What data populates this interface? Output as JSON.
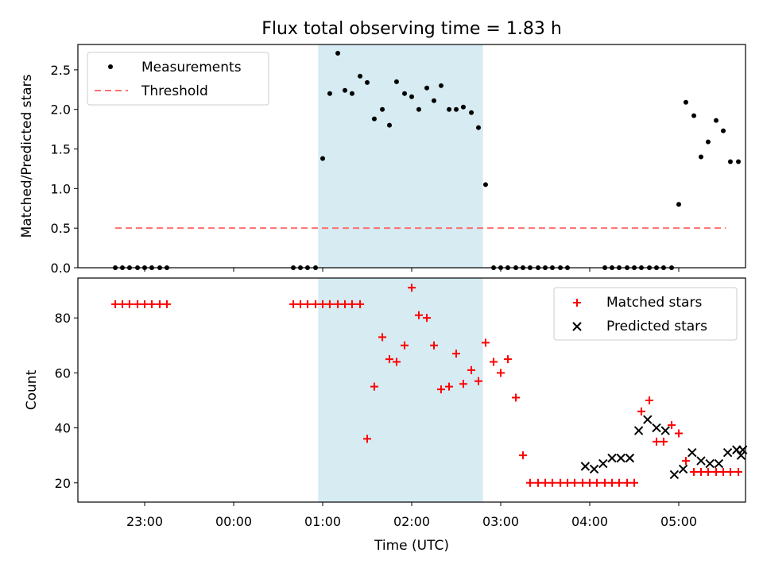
{
  "title": "Flux total observing time = 1.83 h",
  "colors": {
    "measurement": "#000000",
    "threshold": "#ff7070",
    "matched": "#ff0000",
    "predicted": "#000000",
    "highlight": "#add8e6"
  },
  "chart_data": [
    {
      "type": "scatter",
      "name": "ratio-panel",
      "ylabel": "Matched/Predicted stars",
      "xlim": [
        -0.75,
        6.75
      ],
      "ylim": [
        0,
        2.82
      ],
      "yticks": [
        0.0,
        0.5,
        1.0,
        1.5,
        2.0,
        2.5
      ],
      "ytick_labels": [
        "0.0",
        "0.5",
        "1.0",
        "1.5",
        "2.0",
        "2.5"
      ],
      "legend_position": "top-left",
      "legend": [
        "Measurements",
        "Threshold"
      ],
      "threshold": {
        "label": "Threshold",
        "value": 0.5,
        "x_range": [
          -0.33,
          6.53
        ]
      },
      "highlight_span": [
        1.95,
        3.8
      ],
      "series": [
        {
          "name": "Measurements",
          "x": [
            -0.33,
            -0.25,
            -0.17,
            -0.08,
            0.0,
            0.08,
            0.17,
            0.25,
            1.67,
            1.75,
            1.83,
            1.92,
            2.0,
            2.08,
            2.17,
            2.25,
            2.33,
            2.42,
            2.5,
            2.58,
            2.67,
            2.75,
            2.83,
            2.92,
            3.0,
            3.08,
            3.17,
            3.25,
            3.33,
            3.42,
            3.5,
            3.58,
            3.67,
            3.75,
            3.83,
            3.92,
            4.0,
            4.08,
            4.17,
            4.25,
            4.33,
            4.42,
            4.5,
            4.58,
            4.67,
            4.75,
            5.17,
            5.25,
            5.33,
            5.42,
            5.5,
            5.58,
            5.67,
            5.75,
            5.83,
            5.92,
            6.0,
            6.08,
            6.17,
            6.25,
            6.33,
            6.42,
            6.5,
            6.58,
            6.67
          ],
          "y": [
            0,
            0,
            0,
            0,
            0,
            0,
            0,
            0,
            0,
            0,
            0,
            0,
            1.38,
            2.2,
            2.71,
            2.24,
            2.2,
            2.42,
            2.34,
            1.88,
            2.0,
            1.8,
            2.35,
            2.2,
            2.16,
            2.0,
            2.27,
            2.11,
            2.3,
            2.0,
            2.0,
            2.03,
            1.96,
            1.77,
            1.05,
            0,
            0,
            0,
            0,
            0,
            0,
            0,
            0,
            0,
            0,
            0,
            0,
            0,
            0,
            0,
            0,
            0,
            0,
            0,
            0,
            0,
            0.8,
            2.09,
            1.92,
            1.4,
            1.59,
            1.86,
            1.73,
            1.34,
            1.34
          ]
        }
      ]
    },
    {
      "type": "scatter",
      "name": "count-panel",
      "xlabel": "Time (UTC)",
      "ylabel": "Count",
      "xlim": [
        -0.75,
        6.75
      ],
      "ylim": [
        13,
        94.5
      ],
      "yticks": [
        20,
        40,
        60,
        80
      ],
      "ytick_labels": [
        "20",
        "40",
        "60",
        "80"
      ],
      "xticks": [
        0,
        1,
        2,
        3,
        4,
        5,
        6
      ],
      "xtick_labels": [
        "23:00",
        "00:00",
        "01:00",
        "02:00",
        "03:00",
        "04:00",
        "05:00"
      ],
      "legend_position": "top-right",
      "legend": [
        "Matched stars",
        "Predicted stars"
      ],
      "highlight_span": [
        1.95,
        3.8
      ],
      "series": [
        {
          "name": "Matched stars",
          "marker": "plus",
          "x": [
            -0.33,
            -0.25,
            -0.17,
            -0.08,
            0.0,
            0.08,
            0.17,
            0.25,
            1.67,
            1.75,
            1.83,
            1.92,
            2.0,
            2.08,
            2.17,
            2.25,
            2.33,
            2.42,
            2.5,
            2.58,
            2.67,
            2.75,
            2.83,
            2.92,
            3.0,
            3.08,
            3.17,
            3.25,
            3.33,
            3.42,
            3.5,
            3.58,
            3.67,
            3.75,
            3.83,
            3.92,
            4.0,
            4.08,
            4.17,
            4.25,
            4.33,
            4.42,
            4.5,
            4.58,
            4.67,
            4.75,
            4.83,
            4.92,
            5.0,
            5.08,
            5.17,
            5.25,
            5.33,
            5.42,
            5.5,
            5.58,
            5.67,
            5.75,
            5.83,
            5.92,
            6.0,
            6.08,
            6.17,
            6.25,
            6.33,
            6.42,
            6.5,
            6.58,
            6.67
          ],
          "y": [
            85,
            85,
            85,
            85,
            85,
            85,
            85,
            85,
            85,
            85,
            85,
            85,
            85,
            85,
            85,
            85,
            85,
            85,
            36,
            55,
            73,
            65,
            64,
            70,
            91,
            81,
            80,
            70,
            54,
            55,
            67,
            56,
            61,
            57,
            71,
            64,
            60,
            65,
            51,
            30,
            20,
            20,
            20,
            20,
            20,
            20,
            20,
            20,
            20,
            20,
            20,
            20,
            20,
            20,
            20,
            46,
            50,
            35,
            35,
            41,
            38,
            28,
            24,
            24,
            24,
            24,
            24,
            24,
            24
          ]
        },
        {
          "name": "Predicted stars",
          "marker": "x",
          "x": [
            4.95,
            5.05,
            5.15,
            5.25,
            5.35,
            5.45,
            5.55,
            5.65,
            5.75,
            5.85,
            5.95,
            6.05,
            6.15,
            6.25,
            6.35,
            6.45,
            6.55,
            6.65,
            6.7,
            6.72
          ],
          "y": [
            26,
            25,
            27,
            29,
            29,
            29,
            39,
            43,
            40,
            39,
            23,
            25,
            31,
            28,
            27,
            27,
            31,
            32,
            30,
            32
          ]
        }
      ]
    }
  ]
}
